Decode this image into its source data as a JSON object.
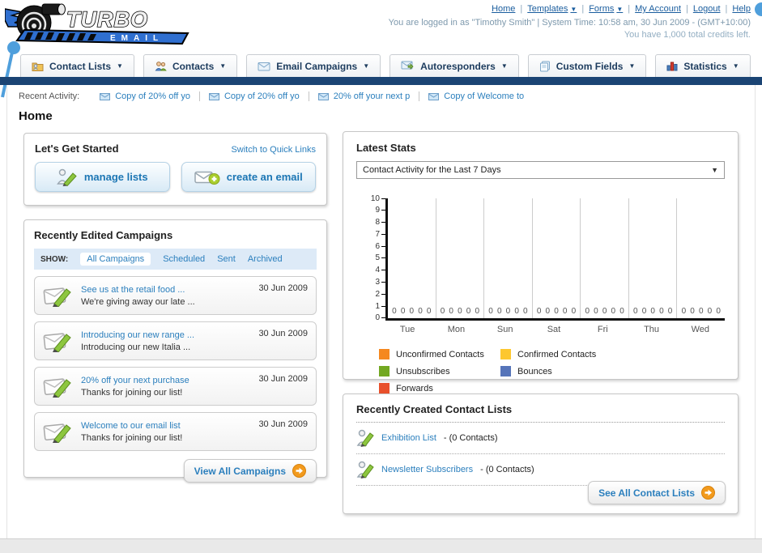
{
  "colors": {
    "navy_bar": "#1b4474",
    "link_blue": "#2b7fbd",
    "brand_blue": "#2f6fd0",
    "accent_orange": "#f29a1d"
  },
  "header": {
    "logo_line1": "TURBO",
    "logo_line2": "EMAIL",
    "nav_links": [
      {
        "label": "Home",
        "dropdown": false
      },
      {
        "label": "Templates",
        "dropdown": true
      },
      {
        "label": "Forms",
        "dropdown": true
      },
      {
        "label": "My Account",
        "dropdown": false
      },
      {
        "label": "Logout",
        "dropdown": false
      },
      {
        "label": "Help",
        "dropdown": false
      }
    ],
    "login_info": "You are logged in as \"Timothy Smith\" | System Time: 10:58 am, 30 Jun 2009 - (GMT+10:00)",
    "credits_info": "You have 1,000 total credits left."
  },
  "tabs": [
    {
      "label": "Contact Lists",
      "icon": "folder-user-icon"
    },
    {
      "label": "Contacts",
      "icon": "users-icon"
    },
    {
      "label": "Email Campaigns",
      "icon": "envelope-icon"
    },
    {
      "label": "Autoresponders",
      "icon": "envelope-arrow-icon"
    },
    {
      "label": "Custom Fields",
      "icon": "pages-icon"
    },
    {
      "label": "Statistics",
      "icon": "bar-chart-icon"
    }
  ],
  "recent_activity": {
    "label": "Recent Activity:",
    "items": [
      "Copy of 20% off yo",
      "Copy of 20% off yo",
      "20% off your next p",
      "Copy of Welcome to"
    ]
  },
  "page_title": "Home",
  "get_started": {
    "title": "Let's Get Started",
    "switch_link": "Switch to Quick Links",
    "manage_lists_label": "manage lists",
    "create_email_label": "create an email"
  },
  "campaigns": {
    "title": "Recently Edited Campaigns",
    "show_label": "SHOW:",
    "filters": [
      "All Campaigns",
      "Scheduled",
      "Sent",
      "Archived"
    ],
    "active_filter": "All Campaigns",
    "items": [
      {
        "title": "See us at the retail food ...",
        "subtitle": "We're giving away our late ...",
        "date": "30 Jun 2009"
      },
      {
        "title": "Introducing our new range ...",
        "subtitle": "Introducing our new Italia ...",
        "date": "30 Jun 2009"
      },
      {
        "title": "20% off your next purchase",
        "subtitle": "Thanks for joining our list!",
        "date": "30 Jun 2009"
      },
      {
        "title": "Welcome to our email list",
        "subtitle": "Thanks for joining our list!",
        "date": "30 Jun 2009"
      }
    ],
    "view_all_label": "View All Campaigns"
  },
  "stats": {
    "title": "Latest Stats",
    "selected_option": "Contact Activity for the Last 7 Days"
  },
  "chart_data": {
    "type": "bar",
    "title": "Contact Activity for the Last 7 Days",
    "categories": [
      "Tue",
      "Mon",
      "Sun",
      "Sat",
      "Fri",
      "Thu",
      "Wed"
    ],
    "series": [
      {
        "name": "Unconfirmed Contacts",
        "color": "#f5881f",
        "values": [
          0,
          0,
          0,
          0,
          0,
          0,
          0
        ]
      },
      {
        "name": "Confirmed Contacts",
        "color": "#fdc72f",
        "values": [
          0,
          0,
          0,
          0,
          0,
          0,
          0
        ]
      },
      {
        "name": "Unsubscribes",
        "color": "#72a821",
        "values": [
          0,
          0,
          0,
          0,
          0,
          0,
          0
        ]
      },
      {
        "name": "Bounces",
        "color": "#5674b9",
        "values": [
          0,
          0,
          0,
          0,
          0,
          0,
          0
        ]
      },
      {
        "name": "Forwards",
        "color": "#e8502b",
        "values": [
          0,
          0,
          0,
          0,
          0,
          0,
          0
        ]
      }
    ],
    "ylim": [
      0,
      10
    ],
    "ytick_step": 1,
    "grid": "vertical-day-separators",
    "legend_position": "bottom",
    "data_labels_shown": true
  },
  "contact_lists": {
    "title": "Recently Created Contact Lists",
    "items": [
      {
        "name": "Exhibition List",
        "detail": "- (0 Contacts)"
      },
      {
        "name": "Newsletter Subscribers",
        "detail": "- (0 Contacts)"
      }
    ],
    "see_all_label": "See All Contact Lists"
  }
}
